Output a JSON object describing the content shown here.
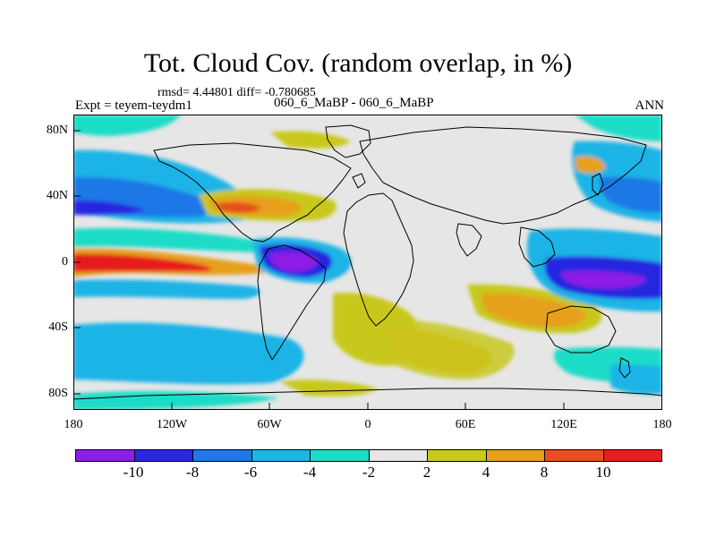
{
  "title": "Tot. Cloud Cov. (random overlap, in %)",
  "stats_line": "rmsd= 4.44801  diff= -0.780685",
  "experiment": "Expt = teyem-teydm1",
  "subtitle": "060_6_MaBP - 060_6_MaBP",
  "season": "ANN",
  "y_axis_labels": [
    "80N",
    "40N",
    "0",
    "40S",
    "80S"
  ],
  "x_axis_labels": [
    "180",
    "120W",
    "60W",
    "0",
    "60E",
    "120E",
    "180"
  ],
  "colorbar": {
    "labels": [
      "-10",
      "-8",
      "-6",
      "-4",
      "-2",
      "2",
      "4",
      "8",
      "10"
    ],
    "colors": [
      "#8c1ee6",
      "#2828e0",
      "#1e78e6",
      "#1eb4e6",
      "#1edcc8",
      "#e6e6e6",
      "#c8c81e",
      "#e6a01e",
      "#e6501e",
      "#e61e1e"
    ]
  },
  "map": {
    "background_color": "#e6e6e6",
    "coastline_color": "#000000"
  }
}
